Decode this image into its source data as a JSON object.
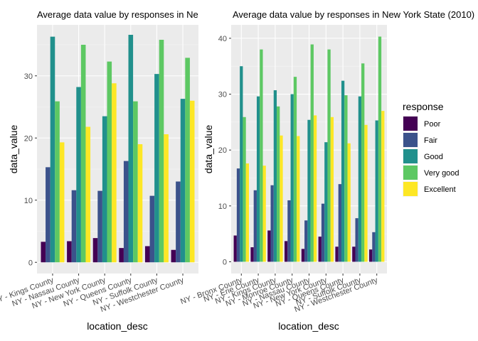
{
  "chart_data": [
    {
      "type": "bar",
      "title": "Average data value by responses in Ne",
      "xlabel": "location_desc",
      "ylabel": "data_value",
      "categories": [
        "NY - Kings County",
        "NY - Nassau County",
        "NY - New York County",
        "NY - Queens County",
        "NY - Suffolk County",
        "NY - Westchester County"
      ],
      "ylim": [
        -1.8,
        38.2
      ],
      "yticks": [
        0,
        10,
        20,
        30
      ],
      "series": [
        {
          "name": "Poor",
          "values": [
            3.3,
            3.4,
            3.9,
            2.3,
            2.6,
            2.0
          ]
        },
        {
          "name": "Fair",
          "values": [
            15.3,
            11.6,
            11.5,
            16.3,
            10.7,
            13.0
          ]
        },
        {
          "name": "Good",
          "values": [
            36.3,
            28.2,
            23.5,
            36.6,
            30.3,
            26.3
          ]
        },
        {
          "name": "Very good",
          "values": [
            25.9,
            35.0,
            32.3,
            25.9,
            35.8,
            32.9
          ]
        },
        {
          "name": "Excellent",
          "values": [
            19.3,
            21.8,
            28.8,
            19.0,
            20.6,
            26.0
          ]
        }
      ]
    },
    {
      "type": "bar",
      "title": "Average data value by responses in New York State (2010)",
      "xlabel": "location_desc",
      "ylabel": "data_value",
      "categories": [
        "NY - Bronx County",
        "NY - Erie County",
        "NY - Kings County",
        "NY - Monroe County",
        "NY - Nassau County",
        "NY - New York County",
        "NY - Queens County",
        "NY - Suffolk County",
        "NY - Westchester County"
      ],
      "ylim": [
        -2.1,
        42.4
      ],
      "yticks": [
        0,
        10,
        20,
        30,
        40
      ],
      "series": [
        {
          "name": "Poor",
          "values": [
            4.7,
            2.6,
            5.6,
            3.7,
            2.3,
            4.5,
            2.7,
            2.7,
            2.2
          ]
        },
        {
          "name": "Fair",
          "values": [
            16.7,
            12.8,
            13.7,
            11.0,
            7.4,
            10.4,
            13.9,
            7.8,
            5.3
          ]
        },
        {
          "name": "Good",
          "values": [
            35.0,
            29.6,
            30.7,
            30.0,
            25.4,
            21.4,
            32.4,
            29.6,
            25.3
          ]
        },
        {
          "name": "Very good",
          "values": [
            25.9,
            38.0,
            27.8,
            33.1,
            38.9,
            38.0,
            29.8,
            35.5,
            40.3
          ]
        },
        {
          "name": "Excellent",
          "values": [
            17.6,
            17.2,
            22.6,
            22.5,
            26.2,
            25.9,
            21.2,
            24.5,
            27.0
          ]
        }
      ]
    }
  ],
  "legend": {
    "title": "response",
    "position": "right",
    "items": [
      {
        "label": "Poor",
        "color": "#440154"
      },
      {
        "label": "Fair",
        "color": "#3B528B"
      },
      {
        "label": "Good",
        "color": "#21908C"
      },
      {
        "label": "Very good",
        "color": "#5DC863"
      },
      {
        "label": "Excellent",
        "color": "#FDE725"
      }
    ]
  }
}
